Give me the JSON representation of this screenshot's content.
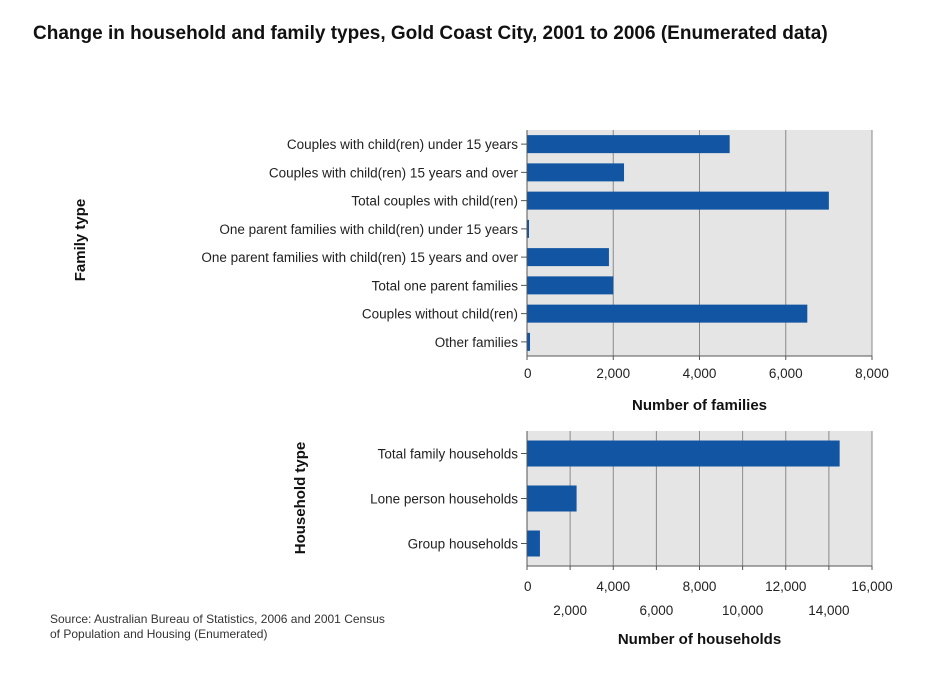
{
  "title": "Change in household and family types, Gold Coast City, 2001 to 2006 (Enumerated data)",
  "source": "Source: Australian Bureau of Statistics, 2006 and 2001 Census of Population and Housing (Enumerated)",
  "colors": {
    "bar": "#1155a3",
    "plot_bg": "#e5e5e5",
    "grid": "#8a8a8a"
  },
  "chart_data": [
    {
      "type": "bar",
      "orientation": "horizontal",
      "ylabel": "Family type",
      "xlabel": "Number of families",
      "xlim": [
        0,
        8000
      ],
      "xticks": [
        "0",
        "2,000",
        "4,000",
        "6,000",
        "8,000"
      ],
      "grid": true,
      "categories": [
        "Couples with child(ren) under 15 years",
        "Couples with child(ren) 15 years and over",
        "Total couples with child(ren)",
        "One parent families with child(ren) under 15 years",
        "One parent families with child(ren) 15 years and over",
        "Total one parent families",
        "Couples without child(ren)",
        "Other families"
      ],
      "values": [
        4700,
        2250,
        7000,
        30,
        1900,
        2000,
        6500,
        70
      ]
    },
    {
      "type": "bar",
      "orientation": "horizontal",
      "ylabel": "Household type",
      "xlabel": "Number of households",
      "xlim": [
        0,
        16000
      ],
      "xticks": [
        "0",
        "2,000",
        "4,000",
        "6,000",
        "8,000",
        "10,000",
        "12,000",
        "14,000",
        "16,000"
      ],
      "grid": true,
      "categories": [
        "Total family households",
        "Lone person households",
        "Group households"
      ],
      "values": [
        14500,
        2300,
        600
      ]
    }
  ]
}
